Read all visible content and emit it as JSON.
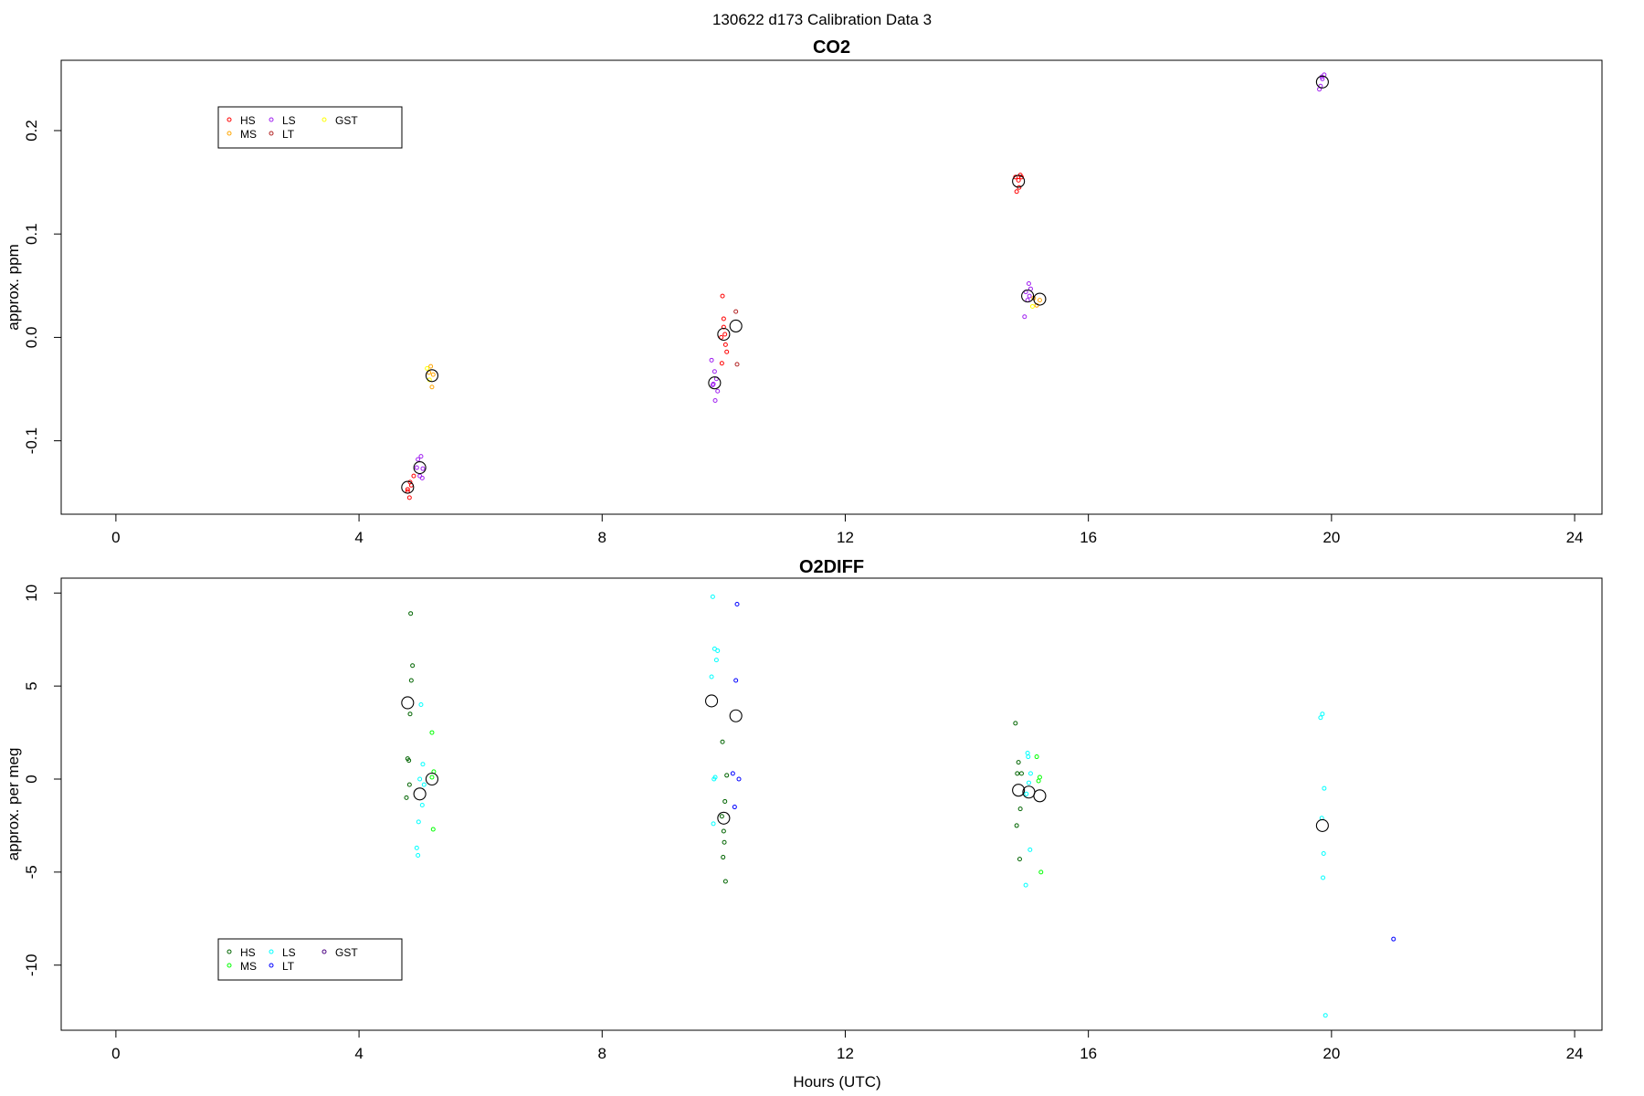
{
  "figure": {
    "title": "130622   d173   Calibration Data 3"
  },
  "chart_data": [
    {
      "type": "scatter",
      "title": "CO2",
      "xlabel": "",
      "ylabel": "approx. ppm",
      "xlim": [
        -0.9,
        24.45
      ],
      "ylim": [
        -0.171,
        0.268
      ],
      "xticks": [
        0,
        4,
        8,
        12,
        16,
        20,
        24
      ],
      "yticks": [
        -0.1,
        0.0,
        0.1,
        0.2
      ],
      "ytick_labels": [
        "-0.1",
        "0.0",
        "0.1",
        "0.2"
      ],
      "grid": false,
      "legend": {
        "position": "top-left",
        "ncol": 3,
        "entries": [
          "HS",
          "MS",
          "LS",
          "LT",
          "GST"
        ]
      },
      "series": [
        {
          "name": "HS",
          "color": "#ff0000",
          "x": [
            4.8,
            4.83,
            4.86,
            4.9,
            4.8,
            4.84,
            9.98,
            10.0,
            10.02,
            9.96,
            10.03,
            10.05,
            9.97,
            10.0,
            14.8,
            14.85,
            14.88,
            14.82,
            14.9,
            14.86
          ],
          "y": [
            -0.149,
            -0.155,
            -0.143,
            -0.134,
            -0.147,
            -0.14,
            0.04,
            0.018,
            0.003,
            0.0,
            -0.007,
            -0.014,
            -0.025,
            0.01,
            0.155,
            0.152,
            0.157,
            0.141,
            0.155,
            0.145
          ]
        },
        {
          "name": "MS",
          "color": "#ffa500",
          "x": [
            5.15,
            5.2,
            5.22,
            5.18,
            15.1,
            15.15,
            15.2
          ],
          "y": [
            -0.034,
            -0.048,
            -0.036,
            -0.028,
            0.038,
            0.031,
            0.036
          ]
        },
        {
          "name": "LS",
          "color": "#a020f0",
          "x": [
            4.97,
            5.02,
            5.05,
            5.0,
            5.04,
            4.95,
            9.8,
            9.85,
            9.88,
            9.83,
            9.9,
            9.86,
            9.82,
            14.97,
            15.02,
            15.05,
            15.0,
            14.95,
            15.03,
            19.8,
            19.85,
            19.88,
            19.82,
            19.84
          ],
          "y": [
            -0.118,
            -0.115,
            -0.127,
            -0.134,
            -0.136,
            -0.126,
            -0.022,
            -0.033,
            -0.04,
            -0.045,
            -0.052,
            -0.061,
            -0.046,
            0.044,
            0.052,
            0.047,
            0.036,
            0.02,
            0.04,
            0.24,
            0.25,
            0.254,
            0.243,
            0.252
          ]
        },
        {
          "name": "LT",
          "color": "#b22222",
          "x": [
            10.2,
            10.22
          ],
          "y": [
            0.025,
            -0.026
          ]
        },
        {
          "name": "GST",
          "color": "#ffff00",
          "x": [
            5.12,
            5.16,
            15.08
          ],
          "y": [
            -0.03,
            -0.041,
            0.03
          ]
        },
        {
          "name": "",
          "color": "#000000",
          "marker": "large-circle",
          "x": [
            4.8,
            5.0,
            5.2,
            9.85,
            10.0,
            10.2,
            14.85,
            15.0,
            15.2,
            19.85
          ],
          "y": [
            -0.145,
            -0.126,
            -0.037,
            -0.044,
            0.003,
            0.011,
            0.151,
            0.04,
            0.037,
            0.247
          ]
        }
      ]
    },
    {
      "type": "scatter",
      "title": "O2DIFF",
      "xlabel": "Hours (UTC)",
      "ylabel": "approx. per meg",
      "xlim": [
        -0.9,
        24.45
      ],
      "ylim": [
        -13.5,
        10.8
      ],
      "xticks": [
        0,
        4,
        8,
        12,
        16,
        20,
        24
      ],
      "yticks": [
        -10,
        -5,
        0,
        5,
        10
      ],
      "ytick_labels": [
        "-10",
        "-5",
        "0",
        "5",
        "10"
      ],
      "grid": false,
      "legend": {
        "position": "bottom-left",
        "ncol": 3,
        "entries": [
          "HS",
          "MS",
          "LS",
          "LT",
          "GST"
        ]
      },
      "series": [
        {
          "name": "HS",
          "color": "#006400",
          "x": [
            4.85,
            4.88,
            4.86,
            4.84,
            4.8,
            4.83,
            4.78,
            4.82,
            9.98,
            10.02,
            10.0,
            10.01,
            9.99,
            10.03,
            9.97,
            10.05,
            14.8,
            14.85,
            14.9,
            14.88,
            14.82,
            14.87,
            14.83
          ],
          "y": [
            8.9,
            6.1,
            5.3,
            3.5,
            1.1,
            -0.3,
            -1.0,
            1.0,
            2.0,
            -1.2,
            -2.8,
            -3.4,
            -4.2,
            -5.5,
            -2.0,
            0.2,
            3.0,
            0.9,
            0.3,
            -1.6,
            -2.5,
            -4.3,
            0.3
          ]
        },
        {
          "name": "MS",
          "color": "#00ff00",
          "x": [
            5.2,
            5.23,
            5.22,
            5.2,
            15.15,
            15.2,
            15.22,
            15.18
          ],
          "y": [
            2.5,
            0.4,
            -2.7,
            0.1,
            1.2,
            0.1,
            -5.0,
            -0.1
          ]
        },
        {
          "name": "LS",
          "color": "#00ffff",
          "x": [
            5.02,
            5.05,
            5.0,
            5.07,
            4.98,
            5.04,
            4.95,
            4.97,
            9.82,
            9.85,
            9.88,
            9.8,
            9.9,
            9.84,
            9.83,
            9.86,
            15.0,
            15.05,
            14.98,
            15.02,
            15.04,
            14.97,
            15.01,
            19.82,
            19.85,
            19.88,
            19.84,
            19.87,
            19.86,
            19.9
          ],
          "y": [
            4.0,
            0.8,
            0.0,
            -0.3,
            -2.3,
            -1.4,
            -3.7,
            -4.1,
            9.8,
            7.0,
            6.4,
            5.5,
            6.9,
            0.0,
            -2.4,
            0.1,
            1.4,
            0.3,
            -0.8,
            -0.2,
            -3.8,
            -5.7,
            1.2,
            3.3,
            3.5,
            -0.5,
            -2.1,
            -4.0,
            -5.3,
            -12.7
          ]
        },
        {
          "name": "LT",
          "color": "#0000ff",
          "x": [
            10.22,
            10.2,
            10.18,
            10.15,
            10.25,
            21.02
          ],
          "y": [
            9.4,
            5.3,
            -1.5,
            0.3,
            0.0,
            -8.6
          ]
        },
        {
          "name": "GST",
          "color": "#4b0082",
          "x": [],
          "y": []
        },
        {
          "name": "",
          "color": "#000000",
          "marker": "large-circle",
          "x": [
            4.8,
            5.0,
            5.2,
            9.8,
            10.0,
            10.2,
            14.85,
            15.02,
            15.2,
            19.85
          ],
          "y": [
            4.1,
            -0.8,
            0.0,
            4.2,
            -2.1,
            3.4,
            -0.6,
            -0.7,
            -0.9,
            -2.5
          ]
        }
      ]
    }
  ]
}
